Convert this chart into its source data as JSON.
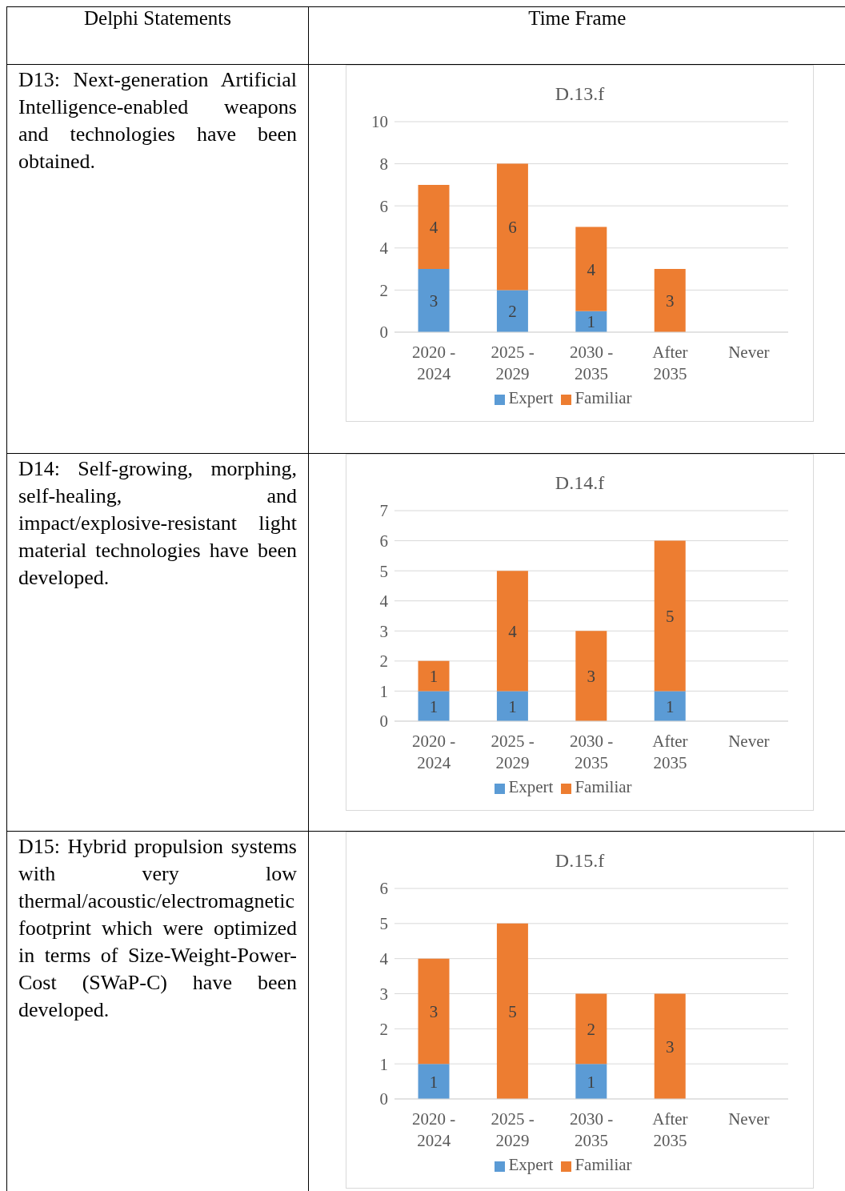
{
  "chart_data": [
    {
      "type": "bar",
      "title": "D.13.f",
      "stacked": true,
      "categories": [
        "2020 - 2024",
        "2025 - 2029",
        "2030 - 2035",
        "After 2035",
        "Never"
      ],
      "series": [
        {
          "name": "Expert",
          "color": "#5b9bd5",
          "values": [
            3,
            2,
            1,
            null,
            null
          ]
        },
        {
          "name": "Familiar",
          "color": "#ed7d31",
          "values": [
            4,
            6,
            4,
            3,
            null
          ]
        }
      ],
      "ylim": [
        0,
        10
      ],
      "yticks": [
        0,
        2,
        4,
        6,
        8,
        10
      ],
      "grid": "y",
      "legend": "bottom",
      "data_labels": true,
      "annotations": [
        "Delphi Statements",
        "Time Frame",
        "D13: Next-generation Artificial Intelligence-enabled weapons and technologies have been obtained."
      ]
    },
    {
      "type": "bar",
      "title": "D.14.f",
      "stacked": true,
      "categories": [
        "2020 - 2024",
        "2025 - 2029",
        "2030 - 2035",
        "After 2035",
        "Never"
      ],
      "series": [
        {
          "name": "Expert",
          "color": "#5b9bd5",
          "values": [
            1,
            1,
            null,
            1,
            null
          ]
        },
        {
          "name": "Familiar",
          "color": "#ed7d31",
          "values": [
            1,
            4,
            3,
            5,
            null
          ]
        }
      ],
      "ylim": [
        0,
        7
      ],
      "yticks": [
        0,
        1,
        2,
        3,
        4,
        5,
        6,
        7
      ],
      "grid": "y",
      "legend": "bottom",
      "data_labels": true,
      "annotations": [
        "D14: Self-growing, morphing, self-healing, and impact/explosive-resistant light material technologies have been developed."
      ]
    },
    {
      "type": "bar",
      "title": "D.15.f",
      "stacked": true,
      "categories": [
        "2020 - 2024",
        "2025 - 2029",
        "2030 - 2035",
        "After 2035",
        "Never"
      ],
      "series": [
        {
          "name": "Expert",
          "color": "#5b9bd5",
          "values": [
            1,
            null,
            1,
            null,
            null
          ]
        },
        {
          "name": "Familiar",
          "color": "#ed7d31",
          "values": [
            3,
            5,
            2,
            3,
            null
          ]
        }
      ],
      "ylim": [
        0,
        6
      ],
      "yticks": [
        0,
        1,
        2,
        3,
        4,
        5,
        6
      ],
      "grid": "y",
      "legend": "bottom",
      "data_labels": true,
      "annotations": [
        "D15: Hybrid propulsion systems with very low thermal/acoustic/electromagnetic footprint which were optimized in terms of Size-Weight-Power-Cost (SWaP-C) have been developed."
      ]
    }
  ]
}
